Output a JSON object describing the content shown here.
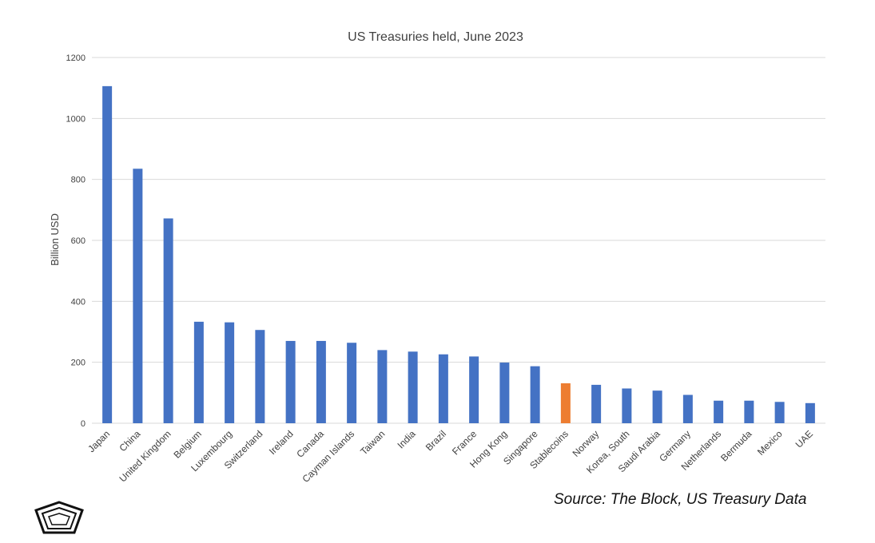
{
  "colors": {
    "primary": "#4472c4",
    "highlight": "#ed7d31",
    "gridline": "#d9d9d9",
    "text": "#404040"
  },
  "source_text": "Source: The Block, US Treasury Data",
  "logo_icon": "pentagon-logo-icon",
  "chart_data": {
    "type": "bar",
    "title": "US Treasuries held, June 2023",
    "xlabel": "",
    "ylabel": "Billion USD",
    "ylim": [
      0,
      1200
    ],
    "yticks": [
      0,
      200,
      400,
      600,
      800,
      1000,
      1200
    ],
    "grid": true,
    "categories": [
      "Japan",
      "China",
      "United Kingdom",
      "Belgium",
      "Luxembourg",
      "Switzerland",
      "Ireland",
      "Canada",
      "Cayman Islands",
      "Taiwan",
      "India",
      "Brazil",
      "France",
      "Hong Kong",
      "Singapore",
      "Stablecoins",
      "Norway",
      "Korea, South",
      "Saudi Arabia",
      "Germany",
      "Netherlands",
      "Bermuda",
      "Mexico",
      "UAE"
    ],
    "values": [
      1106,
      835,
      672,
      333,
      331,
      306,
      270,
      270,
      264,
      240,
      235,
      226,
      219,
      199,
      187,
      131,
      126,
      114,
      107,
      93,
      74,
      74,
      70,
      66
    ],
    "highlight": [
      "Stablecoins"
    ]
  }
}
